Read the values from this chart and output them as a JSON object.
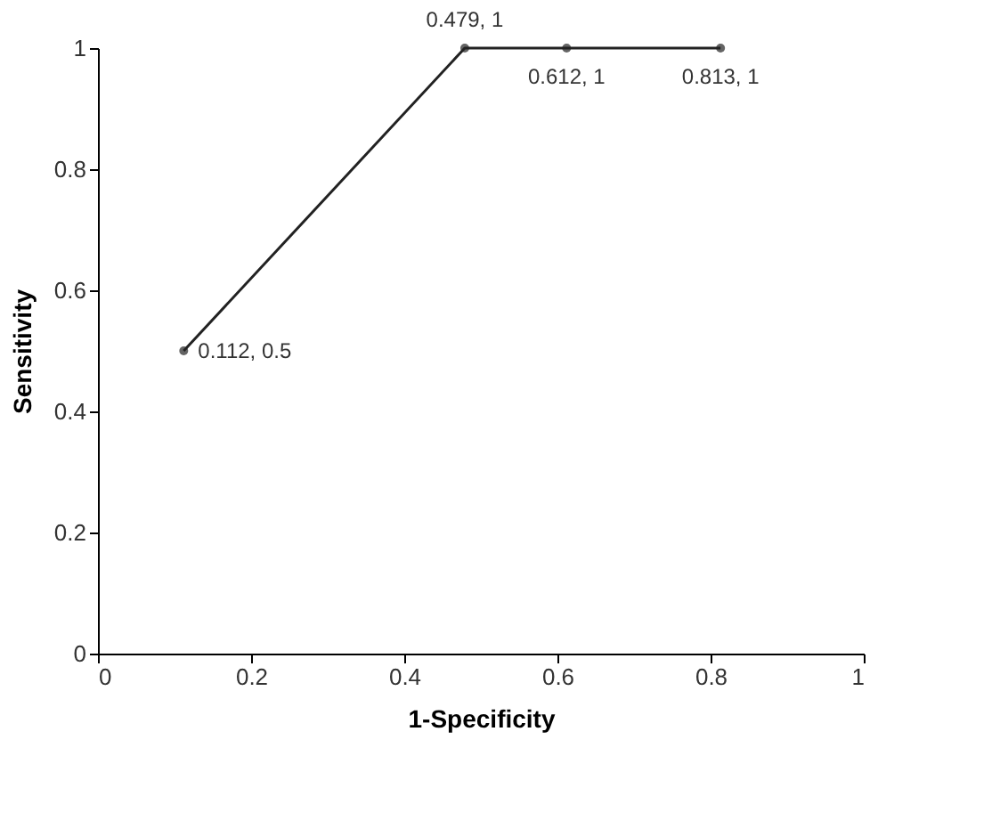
{
  "chart_data": {
    "type": "line",
    "xlabel": "1-Specificity",
    "ylabel": "Sensitivity",
    "x": [
      0.112,
      0.479,
      0.612,
      0.813
    ],
    "series": [
      {
        "color": "#222222",
        "values": [
          0.5,
          1,
          1,
          1
        ]
      }
    ],
    "xlim": [
      0,
      1
    ],
    "xticks": [
      0,
      0.2,
      0.4,
      0.6,
      0.8,
      1
    ],
    "ylim": [
      0,
      1
    ],
    "yticks": [
      0,
      0.2,
      0.4,
      0.6,
      0.8,
      1
    ],
    "grid": false,
    "marker": "circle",
    "line_style": "solid",
    "annotations": [
      {
        "text": "0.112, 0.5",
        "x": 0.112,
        "y": 0.5
      },
      {
        "text": "0.479, 1",
        "x": 0.479,
        "y": 1
      },
      {
        "text": "0.612, 1",
        "x": 0.612,
        "y": 1
      },
      {
        "text": "0.813, 1",
        "x": 0.813,
        "y": 1
      }
    ]
  }
}
